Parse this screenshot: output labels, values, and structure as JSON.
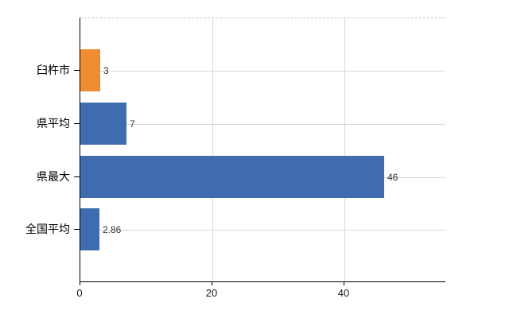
{
  "chart_data": {
    "type": "bar",
    "orientation": "horizontal",
    "title": "",
    "xlabel": "",
    "ylabel": "",
    "categories": [
      "臼杵市",
      "県平均",
      "県最大",
      "全国平均"
    ],
    "values": [
      3,
      7,
      46,
      2.86
    ],
    "value_labels": [
      "3",
      "7",
      "46",
      "2.86"
    ],
    "bar_colors": [
      "#ee8c2f",
      "#3e6cae",
      "#3e6cae",
      "#3e6cae"
    ],
    "highlight_color": "#ee8c2f",
    "default_bar_color": "#3e6cae",
    "x_tick_labels": [
      "0",
      "20",
      "40"
    ],
    "x_tick_values": [
      0,
      20,
      40
    ],
    "xlim": [
      0,
      55.3
    ],
    "grid": true,
    "legend": "none",
    "background_color": "#ffffff",
    "gridline_color": "#d9d9d9",
    "axis_color": "#000000",
    "category_label_color": "#000000",
    "value_label_color": "#333333"
  }
}
